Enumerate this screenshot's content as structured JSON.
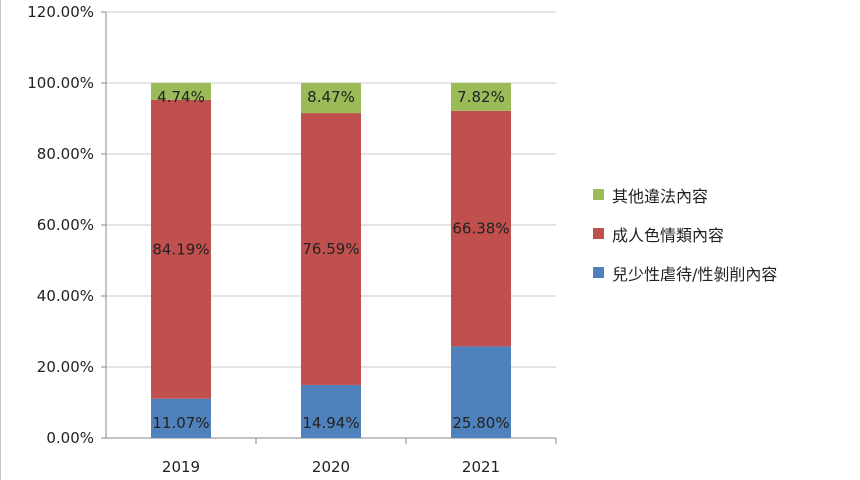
{
  "chart_data": {
    "type": "bar",
    "stacked": true,
    "categories": [
      "2019",
      "2020",
      "2021"
    ],
    "series": [
      {
        "name": "兒少性虐待/性剝削內容",
        "color": "#4f81bd",
        "values": [
          11.07,
          14.94,
          25.8
        ],
        "labels": [
          "11.07%",
          "14.94%",
          "25.80%"
        ]
      },
      {
        "name": "成人色情類內容",
        "color": "#c0504d",
        "values": [
          84.19,
          76.59,
          66.38
        ],
        "labels": [
          "84.19%",
          "76.59%",
          "66.38%"
        ]
      },
      {
        "name": "其他違法內容",
        "color": "#9bbb59",
        "values": [
          4.74,
          8.47,
          7.82
        ],
        "labels": [
          "4.74%",
          "8.47%",
          "7.82%"
        ]
      }
    ],
    "y_ticks": [
      "0.00%",
      "20.00%",
      "40.00%",
      "60.00%",
      "80.00%",
      "100.00%",
      "120.00%"
    ],
    "ylim": [
      0,
      120
    ],
    "grid": true,
    "legend_position": "right"
  }
}
